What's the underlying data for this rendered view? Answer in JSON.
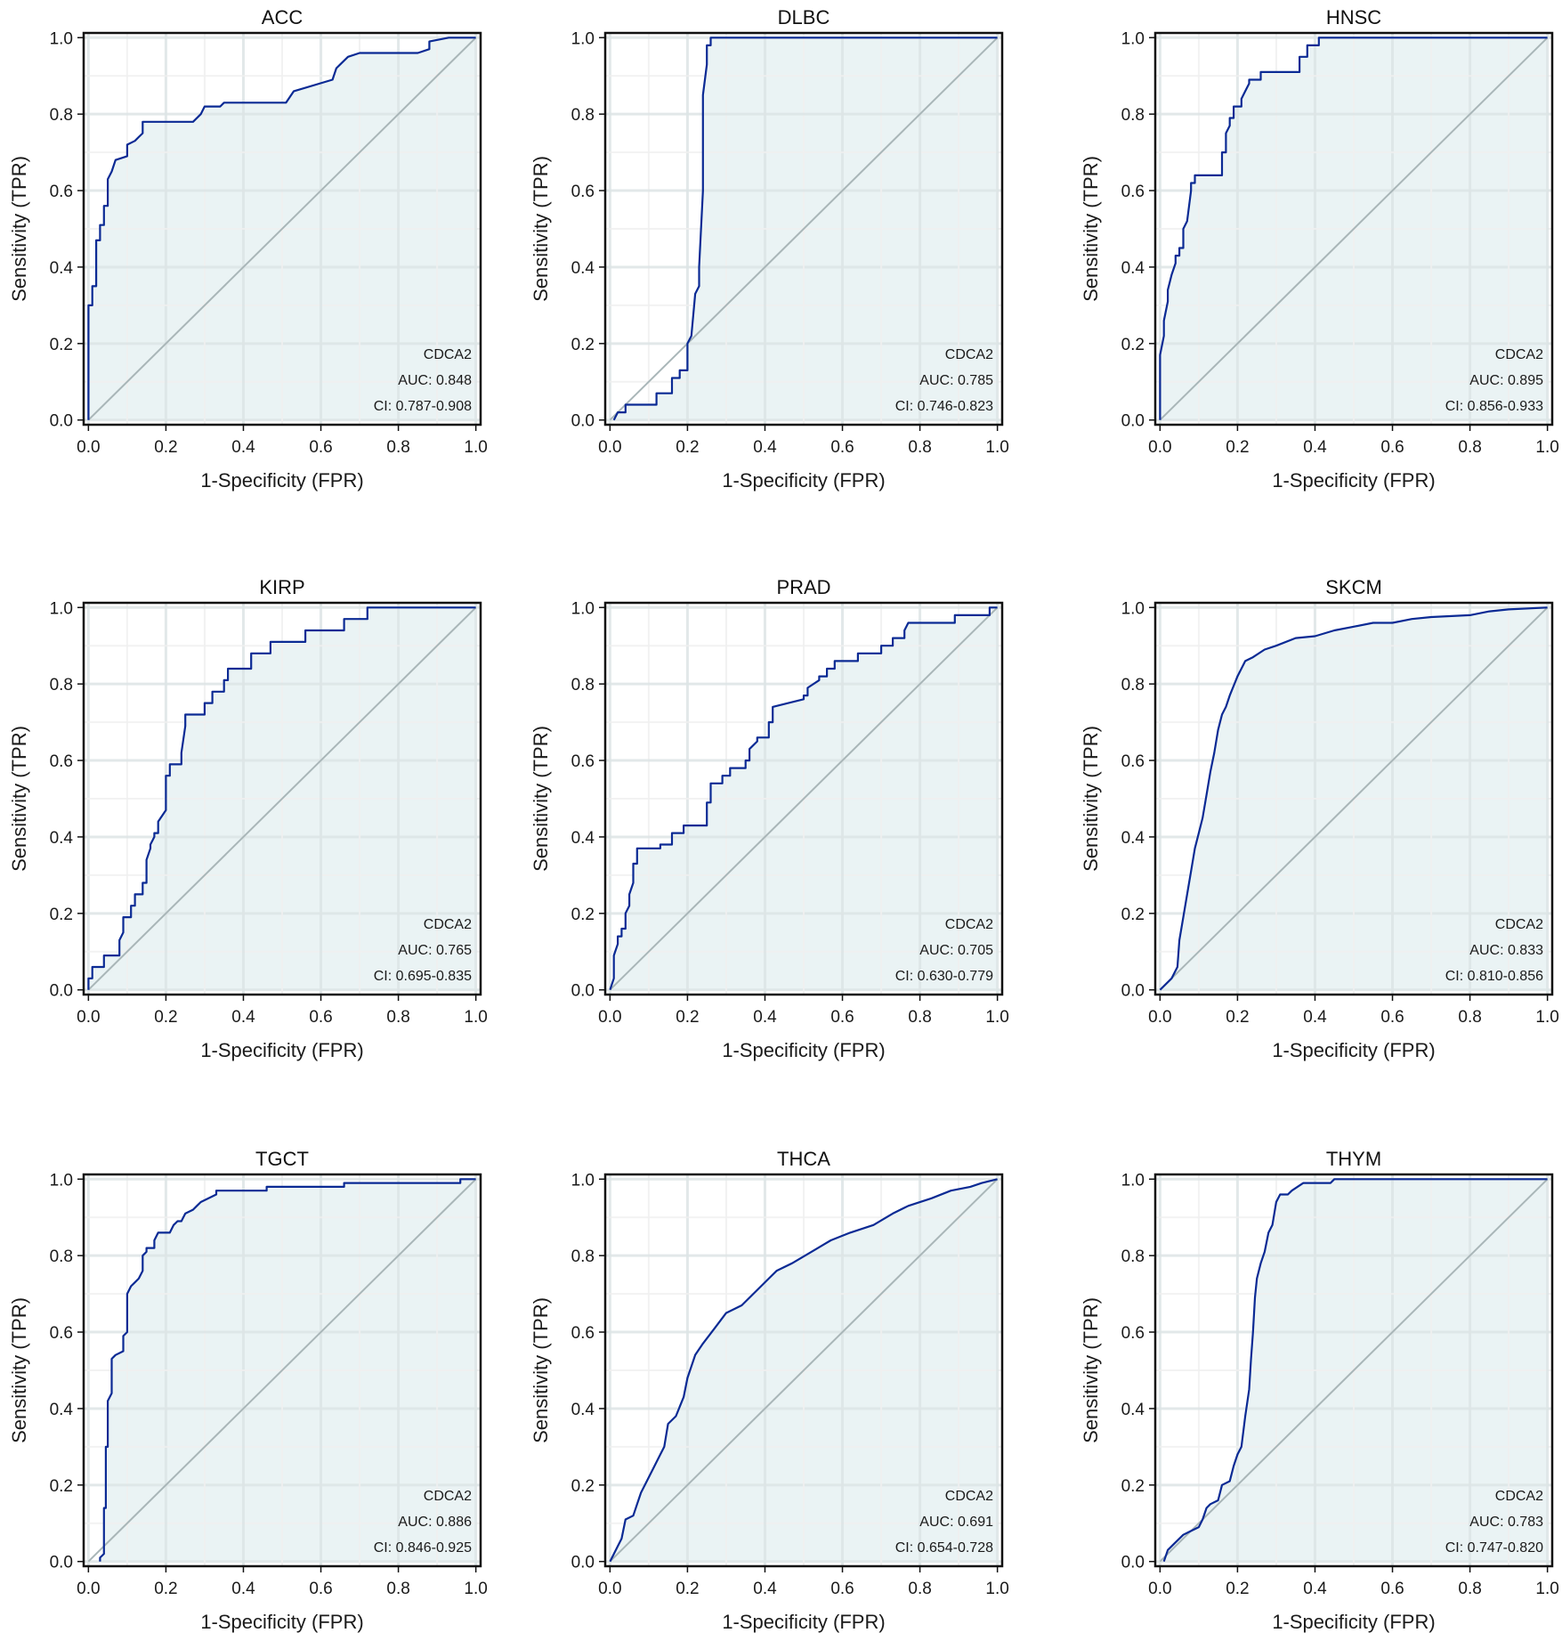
{
  "figure": {
    "xlabel": "1-Specificity (FPR)",
    "ylabel": "Sensitivity (TPR)",
    "gene": "CDCA2",
    "colors": {
      "curve": "#0b2a94",
      "fill": "#e8f2f3",
      "diagonal": "#a9b6b8",
      "grid_major": "#dde5e6",
      "grid_minor": "#f0f0f0",
      "frame": "#111111"
    }
  },
  "chart_data": [
    {
      "type": "line",
      "title": "ACC",
      "gene": "CDCA2",
      "auc_label": "AUC: 0.848",
      "ci_label": "CI: 0.787-0.908",
      "auc": 0.848,
      "ci": [
        0.787,
        0.908
      ],
      "xlabel": "1-Specificity (FPR)",
      "ylabel": "Sensitivity (TPR)",
      "xlim": [
        0,
        1
      ],
      "ylim": [
        0,
        1
      ],
      "xticks": [
        "0.0",
        "0.2",
        "0.4",
        "0.6",
        "0.8",
        "1.0"
      ],
      "yticks": [
        "0.0",
        "0.2",
        "0.4",
        "0.6",
        "0.8",
        "1.0"
      ],
      "fpr": [
        0,
        0,
        0.01,
        0.01,
        0.02,
        0.02,
        0.03,
        0.03,
        0.04,
        0.04,
        0.05,
        0.05,
        0.06,
        0.07,
        0.1,
        0.1,
        0.12,
        0.13,
        0.14,
        0.14,
        0.27,
        0.29,
        0.3,
        0.34,
        0.35,
        0.51,
        0.53,
        0.63,
        0.64,
        0.67,
        0.7,
        0.85,
        0.88,
        0.88,
        0.93,
        1.0
      ],
      "tpr": [
        0,
        0.3,
        0.3,
        0.35,
        0.35,
        0.47,
        0.47,
        0.51,
        0.51,
        0.56,
        0.56,
        0.63,
        0.65,
        0.68,
        0.69,
        0.72,
        0.73,
        0.74,
        0.75,
        0.78,
        0.78,
        0.8,
        0.82,
        0.82,
        0.83,
        0.83,
        0.86,
        0.89,
        0.92,
        0.95,
        0.96,
        0.96,
        0.97,
        0.99,
        1.0,
        1.0
      ]
    },
    {
      "type": "line",
      "title": "DLBC",
      "gene": "CDCA2",
      "auc_label": "AUC: 0.785",
      "ci_label": "CI: 0.746-0.823",
      "auc": 0.785,
      "ci": [
        0.746,
        0.823
      ],
      "xlabel": "1-Specificity (FPR)",
      "ylabel": "Sensitivity (TPR)",
      "xlim": [
        0,
        1
      ],
      "ylim": [
        0,
        1
      ],
      "xticks": [
        "0.0",
        "0.2",
        "0.4",
        "0.6",
        "0.8",
        "1.0"
      ],
      "yticks": [
        "0.0",
        "0.2",
        "0.4",
        "0.6",
        "0.8",
        "1.0"
      ],
      "fpr": [
        0.01,
        0.02,
        0.04,
        0.04,
        0.12,
        0.12,
        0.16,
        0.16,
        0.18,
        0.18,
        0.2,
        0.2,
        0.21,
        0.22,
        0.23,
        0.23,
        0.24,
        0.24,
        0.25,
        0.25,
        0.26,
        0.26,
        1.0
      ],
      "tpr": [
        0,
        0.02,
        0.02,
        0.04,
        0.04,
        0.07,
        0.07,
        0.11,
        0.11,
        0.13,
        0.13,
        0.2,
        0.22,
        0.33,
        0.35,
        0.4,
        0.6,
        0.85,
        0.93,
        0.98,
        0.98,
        1.0,
        1.0
      ]
    },
    {
      "type": "line",
      "title": "HNSC",
      "gene": "CDCA2",
      "auc_label": "AUC: 0.895",
      "ci_label": "CI: 0.856-0.933",
      "auc": 0.895,
      "ci": [
        0.856,
        0.933
      ],
      "xlabel": "1-Specificity (FPR)",
      "ylabel": "Sensitivity (TPR)",
      "xlim": [
        0,
        1
      ],
      "ylim": [
        0,
        1
      ],
      "xticks": [
        "0.0",
        "0.2",
        "0.4",
        "0.6",
        "0.8",
        "1.0"
      ],
      "yticks": [
        "0.0",
        "0.2",
        "0.4",
        "0.6",
        "0.8",
        "1.0"
      ],
      "fpr": [
        0,
        0,
        0.01,
        0.01,
        0.02,
        0.02,
        0.03,
        0.03,
        0.04,
        0.04,
        0.05,
        0.05,
        0.06,
        0.06,
        0.07,
        0.07,
        0.08,
        0.08,
        0.09,
        0.09,
        0.11,
        0.16,
        0.16,
        0.17,
        0.17,
        0.18,
        0.18,
        0.19,
        0.19,
        0.21,
        0.21,
        0.22,
        0.22,
        0.23,
        0.23,
        0.26,
        0.26,
        0.36,
        0.36,
        0.38,
        0.38,
        0.41,
        0.41,
        1.0
      ],
      "tpr": [
        0,
        0.17,
        0.22,
        0.26,
        0.31,
        0.34,
        0.38,
        0.38,
        0.41,
        0.43,
        0.43,
        0.45,
        0.45,
        0.5,
        0.52,
        0.52,
        0.6,
        0.62,
        0.62,
        0.64,
        0.64,
        0.64,
        0.7,
        0.7,
        0.75,
        0.77,
        0.79,
        0.79,
        0.82,
        0.82,
        0.84,
        0.86,
        0.86,
        0.88,
        0.89,
        0.89,
        0.91,
        0.91,
        0.95,
        0.95,
        0.98,
        0.98,
        1.0,
        1.0
      ]
    },
    {
      "type": "line",
      "title": "KIRP",
      "gene": "CDCA2",
      "auc_label": "AUC: 0.765",
      "ci_label": "CI: 0.695-0.835",
      "auc": 0.765,
      "ci": [
        0.695,
        0.835
      ],
      "xlabel": "1-Specificity (FPR)",
      "ylabel": "Sensitivity (TPR)",
      "xlim": [
        0,
        1
      ],
      "ylim": [
        0,
        1
      ],
      "xticks": [
        "0.0",
        "0.2",
        "0.4",
        "0.6",
        "0.8",
        "1.0"
      ],
      "yticks": [
        "0.0",
        "0.2",
        "0.4",
        "0.6",
        "0.8",
        "1.0"
      ],
      "fpr": [
        0,
        0,
        0.01,
        0.01,
        0.04,
        0.04,
        0.08,
        0.08,
        0.09,
        0.09,
        0.11,
        0.11,
        0.12,
        0.12,
        0.14,
        0.14,
        0.15,
        0.15,
        0.16,
        0.16,
        0.17,
        0.17,
        0.18,
        0.18,
        0.2,
        0.2,
        0.21,
        0.21,
        0.24,
        0.24,
        0.25,
        0.25,
        0.3,
        0.3,
        0.32,
        0.32,
        0.35,
        0.35,
        0.36,
        0.36,
        0.42,
        0.42,
        0.47,
        0.47,
        0.56,
        0.56,
        0.66,
        0.66,
        0.72,
        0.72,
        1.0
      ],
      "tpr": [
        0,
        0.03,
        0.03,
        0.06,
        0.06,
        0.09,
        0.09,
        0.13,
        0.15,
        0.19,
        0.19,
        0.22,
        0.22,
        0.25,
        0.25,
        0.28,
        0.28,
        0.34,
        0.37,
        0.38,
        0.4,
        0.41,
        0.41,
        0.44,
        0.47,
        0.56,
        0.56,
        0.59,
        0.59,
        0.62,
        0.69,
        0.72,
        0.72,
        0.75,
        0.75,
        0.78,
        0.78,
        0.81,
        0.81,
        0.84,
        0.84,
        0.88,
        0.88,
        0.91,
        0.91,
        0.94,
        0.94,
        0.97,
        0.97,
        1.0,
        1.0
      ]
    },
    {
      "type": "line",
      "title": "PRAD",
      "gene": "CDCA2",
      "auc_label": "AUC: 0.705",
      "ci_label": "CI: 0.630-0.779",
      "auc": 0.705,
      "ci": [
        0.63,
        0.779
      ],
      "xlabel": "1-Specificity (FPR)",
      "ylabel": "Sensitivity (TPR)",
      "xlim": [
        0,
        1
      ],
      "ylim": [
        0,
        1
      ],
      "xticks": [
        "0.0",
        "0.2",
        "0.4",
        "0.6",
        "0.8",
        "1.0"
      ],
      "yticks": [
        "0.0",
        "0.2",
        "0.4",
        "0.6",
        "0.8",
        "1.0"
      ],
      "fpr": [
        0,
        0.01,
        0.01,
        0.02,
        0.02,
        0.03,
        0.03,
        0.04,
        0.04,
        0.05,
        0.05,
        0.06,
        0.06,
        0.07,
        0.07,
        0.13,
        0.13,
        0.16,
        0.16,
        0.19,
        0.19,
        0.25,
        0.25,
        0.26,
        0.26,
        0.29,
        0.29,
        0.31,
        0.31,
        0.35,
        0.35,
        0.36,
        0.36,
        0.38,
        0.38,
        0.41,
        0.41,
        0.42,
        0.42,
        0.5,
        0.5,
        0.51,
        0.51,
        0.54,
        0.54,
        0.56,
        0.56,
        0.58,
        0.58,
        0.64,
        0.64,
        0.7,
        0.7,
        0.73,
        0.73,
        0.76,
        0.76,
        0.77,
        0.77,
        0.89,
        0.89,
        0.98,
        0.98,
        1.0
      ],
      "tpr": [
        0,
        0.03,
        0.09,
        0.12,
        0.14,
        0.14,
        0.16,
        0.16,
        0.2,
        0.22,
        0.25,
        0.28,
        0.33,
        0.33,
        0.37,
        0.37,
        0.38,
        0.38,
        0.41,
        0.41,
        0.43,
        0.43,
        0.49,
        0.49,
        0.54,
        0.54,
        0.56,
        0.56,
        0.58,
        0.58,
        0.6,
        0.6,
        0.63,
        0.65,
        0.66,
        0.66,
        0.7,
        0.7,
        0.74,
        0.76,
        0.77,
        0.77,
        0.79,
        0.81,
        0.82,
        0.82,
        0.84,
        0.84,
        0.86,
        0.86,
        0.88,
        0.88,
        0.9,
        0.9,
        0.92,
        0.92,
        0.94,
        0.96,
        0.96,
        0.96,
        0.98,
        0.98,
        1.0,
        1.0
      ]
    },
    {
      "type": "line",
      "title": "SKCM",
      "gene": "CDCA2",
      "auc_label": "AUC: 0.833",
      "ci_label": "CI: 0.810-0.856",
      "auc": 0.833,
      "ci": [
        0.81,
        0.856
      ],
      "xlabel": "1-Specificity (FPR)",
      "ylabel": "Sensitivity (TPR)",
      "xlim": [
        0,
        1
      ],
      "ylim": [
        0,
        1
      ],
      "xticks": [
        "0.0",
        "0.2",
        "0.4",
        "0.6",
        "0.8",
        "1.0"
      ],
      "yticks": [
        "0.0",
        "0.2",
        "0.4",
        "0.6",
        "0.8",
        "1.0"
      ],
      "fpr": [
        0,
        0.03,
        0.045,
        0.05,
        0.06,
        0.07,
        0.08,
        0.09,
        0.1,
        0.11,
        0.12,
        0.13,
        0.14,
        0.15,
        0.16,
        0.17,
        0.18,
        0.2,
        0.22,
        0.24,
        0.27,
        0.3,
        0.35,
        0.4,
        0.45,
        0.5,
        0.55,
        0.6,
        0.65,
        0.7,
        0.8,
        0.85,
        0.9,
        1.0
      ],
      "tpr": [
        0,
        0.03,
        0.06,
        0.13,
        0.19,
        0.25,
        0.31,
        0.37,
        0.41,
        0.45,
        0.51,
        0.57,
        0.62,
        0.68,
        0.72,
        0.74,
        0.77,
        0.82,
        0.86,
        0.87,
        0.89,
        0.9,
        0.92,
        0.925,
        0.94,
        0.95,
        0.96,
        0.96,
        0.97,
        0.975,
        0.98,
        0.99,
        0.995,
        1.0
      ]
    },
    {
      "type": "line",
      "title": "TGCT",
      "gene": "CDCA2",
      "auc_label": "AUC: 0.886",
      "ci_label": "CI: 0.846-0.925",
      "auc": 0.886,
      "ci": [
        0.846,
        0.925
      ],
      "xlabel": "1-Specificity (FPR)",
      "ylabel": "Sensitivity (TPR)",
      "xlim": [
        0,
        1
      ],
      "ylim": [
        0,
        1
      ],
      "xticks": [
        "0.0",
        "0.2",
        "0.4",
        "0.6",
        "0.8",
        "1.0"
      ],
      "yticks": [
        "0.0",
        "0.2",
        "0.4",
        "0.6",
        "0.8",
        "1.0"
      ],
      "fpr": [
        0.03,
        0.03,
        0.04,
        0.04,
        0.045,
        0.045,
        0.05,
        0.05,
        0.06,
        0.06,
        0.07,
        0.07,
        0.09,
        0.09,
        0.1,
        0.1,
        0.11,
        0.12,
        0.13,
        0.14,
        0.14,
        0.15,
        0.15,
        0.17,
        0.17,
        0.18,
        0.18,
        0.21,
        0.22,
        0.23,
        0.24,
        0.25,
        0.27,
        0.28,
        0.29,
        0.31,
        0.33,
        0.33,
        0.46,
        0.46,
        0.49,
        0.66,
        0.66,
        0.96,
        0.96,
        1.0
      ],
      "tpr": [
        0,
        0.01,
        0.02,
        0.14,
        0.14,
        0.3,
        0.3,
        0.42,
        0.44,
        0.53,
        0.54,
        0.54,
        0.55,
        0.59,
        0.6,
        0.7,
        0.72,
        0.73,
        0.74,
        0.76,
        0.8,
        0.81,
        0.82,
        0.82,
        0.84,
        0.86,
        0.86,
        0.86,
        0.88,
        0.89,
        0.89,
        0.91,
        0.92,
        0.93,
        0.94,
        0.95,
        0.96,
        0.97,
        0.97,
        0.98,
        0.98,
        0.98,
        0.99,
        0.99,
        1.0,
        1.0
      ]
    },
    {
      "type": "line",
      "title": "THCA",
      "gene": "CDCA2",
      "auc_label": "AUC: 0.691",
      "ci_label": "CI: 0.654-0.728",
      "auc": 0.691,
      "ci": [
        0.654,
        0.728
      ],
      "xlabel": "1-Specificity (FPR)",
      "ylabel": "Sensitivity (TPR)",
      "xlim": [
        0,
        1
      ],
      "ylim": [
        0,
        1
      ],
      "xticks": [
        "0.0",
        "0.2",
        "0.4",
        "0.6",
        "0.8",
        "1.0"
      ],
      "yticks": [
        "0.0",
        "0.2",
        "0.4",
        "0.6",
        "0.8",
        "1.0"
      ],
      "fpr": [
        0,
        0.02,
        0.03,
        0.04,
        0.06,
        0.07,
        0.08,
        0.1,
        0.11,
        0.13,
        0.14,
        0.15,
        0.17,
        0.19,
        0.2,
        0.22,
        0.24,
        0.27,
        0.3,
        0.34,
        0.37,
        0.41,
        0.43,
        0.47,
        0.52,
        0.57,
        0.62,
        0.68,
        0.73,
        0.77,
        0.83,
        0.88,
        0.93,
        0.96,
        1.0
      ],
      "tpr": [
        0,
        0.04,
        0.06,
        0.11,
        0.12,
        0.15,
        0.18,
        0.22,
        0.24,
        0.28,
        0.3,
        0.36,
        0.38,
        0.43,
        0.48,
        0.54,
        0.57,
        0.61,
        0.65,
        0.67,
        0.7,
        0.74,
        0.76,
        0.78,
        0.81,
        0.84,
        0.86,
        0.88,
        0.91,
        0.93,
        0.95,
        0.97,
        0.98,
        0.99,
        1.0
      ]
    },
    {
      "type": "line",
      "title": "THYM",
      "gene": "CDCA2",
      "auc_label": "AUC: 0.783",
      "ci_label": "CI: 0.747-0.820",
      "auc": 0.783,
      "ci": [
        0.747,
        0.82
      ],
      "xlabel": "1-Specificity (FPR)",
      "ylabel": "Sensitivity (TPR)",
      "xlim": [
        0,
        1
      ],
      "ylim": [
        0,
        1
      ],
      "xticks": [
        "0.0",
        "0.2",
        "0.4",
        "0.6",
        "0.8",
        "1.0"
      ],
      "yticks": [
        "0.0",
        "0.2",
        "0.4",
        "0.6",
        "0.8",
        "1.0"
      ],
      "fpr": [
        0.01,
        0.02,
        0.04,
        0.06,
        0.08,
        0.1,
        0.11,
        0.12,
        0.13,
        0.15,
        0.16,
        0.18,
        0.19,
        0.2,
        0.21,
        0.22,
        0.23,
        0.235,
        0.24,
        0.245,
        0.25,
        0.26,
        0.27,
        0.28,
        0.29,
        0.3,
        0.31,
        0.33,
        0.34,
        0.37,
        0.44,
        0.45,
        1.0
      ],
      "tpr": [
        0,
        0.03,
        0.05,
        0.07,
        0.08,
        0.09,
        0.11,
        0.14,
        0.15,
        0.16,
        0.2,
        0.21,
        0.25,
        0.28,
        0.3,
        0.38,
        0.45,
        0.53,
        0.6,
        0.69,
        0.74,
        0.78,
        0.81,
        0.86,
        0.88,
        0.94,
        0.96,
        0.96,
        0.97,
        0.99,
        0.99,
        1.0,
        1.0
      ]
    }
  ]
}
